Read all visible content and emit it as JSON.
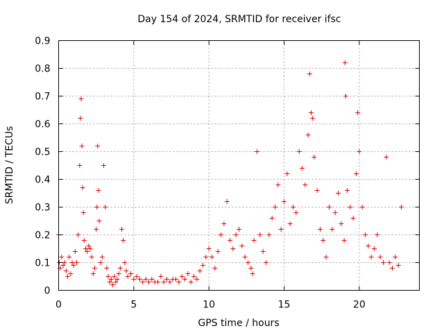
{
  "chart_data": {
    "type": "scatter",
    "title": "Day 154 of 2024, SRMTID for receiver ifsc",
    "xlabel": "GPS time / hours",
    "ylabel": "SRMTID / TECUs",
    "xlim": [
      0,
      24
    ],
    "ylim": [
      0,
      0.9
    ],
    "xticks": [
      0,
      5,
      10,
      15,
      20
    ],
    "xtick_labels": [
      "0",
      "5",
      "10",
      "15",
      "20"
    ],
    "yticks": [
      0,
      0.1,
      0.2,
      0.3,
      0.4,
      0.5,
      0.6,
      0.7,
      0.8,
      0.9
    ],
    "ytick_labels": [
      "0",
      "0.1",
      "0.2",
      "0.3",
      "0.4",
      "0.5",
      "0.6",
      "0.7",
      "0.8",
      "0.9"
    ],
    "grid": true,
    "marker": "+",
    "marker_color": "#e00000",
    "series": [
      {
        "name": "SRMTID",
        "x": [
          0.0,
          0.05,
          0.1,
          0.2,
          0.3,
          0.4,
          0.5,
          0.6,
          0.7,
          0.8,
          0.9,
          1.0,
          1.1,
          1.2,
          1.3,
          1.4,
          1.45,
          1.5,
          1.55,
          1.6,
          1.65,
          1.7,
          1.8,
          1.9,
          2.0,
          2.1,
          2.2,
          2.3,
          2.4,
          2.5,
          2.55,
          2.6,
          2.65,
          2.7,
          2.8,
          2.9,
          3.0,
          3.1,
          3.2,
          3.3,
          3.4,
          3.5,
          3.6,
          3.7,
          3.8,
          3.9,
          4.0,
          4.1,
          4.2,
          4.3,
          4.4,
          4.5,
          4.6,
          4.8,
          5.0,
          5.2,
          5.4,
          5.6,
          5.8,
          6.0,
          6.2,
          6.4,
          6.6,
          6.8,
          7.0,
          7.2,
          7.4,
          7.6,
          7.8,
          8.0,
          8.2,
          8.4,
          8.6,
          8.8,
          9.0,
          9.2,
          9.4,
          9.6,
          9.8,
          10.0,
          10.2,
          10.4,
          10.6,
          10.8,
          11.0,
          11.2,
          11.4,
          11.6,
          11.8,
          12.0,
          12.2,
          12.4,
          12.6,
          12.8,
          12.9,
          13.0,
          13.2,
          13.4,
          13.6,
          13.8,
          14.0,
          14.2,
          14.4,
          14.6,
          14.8,
          15.0,
          15.2,
          15.4,
          15.6,
          15.8,
          16.0,
          16.2,
          16.4,
          16.6,
          16.7,
          16.8,
          16.9,
          17.0,
          17.2,
          17.4,
          17.6,
          17.8,
          18.0,
          18.2,
          18.4,
          18.6,
          18.8,
          19.0,
          19.05,
          19.1,
          19.2,
          19.4,
          19.6,
          19.8,
          19.9,
          20.0,
          20.2,
          20.4,
          20.6,
          20.8,
          21.0,
          21.2,
          21.4,
          21.6,
          21.8,
          22.0,
          22.2,
          22.4,
          22.6,
          22.8
        ],
        "y": [
          0.2,
          0.1,
          0.08,
          0.12,
          0.09,
          0.1,
          0.07,
          0.05,
          0.12,
          0.06,
          0.1,
          0.09,
          0.14,
          0.1,
          0.2,
          0.45,
          0.62,
          0.69,
          0.52,
          0.37,
          0.28,
          0.18,
          0.15,
          0.14,
          0.16,
          0.15,
          0.12,
          0.06,
          0.08,
          0.22,
          0.3,
          0.52,
          0.36,
          0.25,
          0.1,
          0.12,
          0.45,
          0.3,
          0.08,
          0.05,
          0.03,
          0.04,
          0.02,
          0.05,
          0.03,
          0.04,
          0.06,
          0.08,
          0.22,
          0.18,
          0.1,
          0.07,
          0.05,
          0.06,
          0.04,
          0.05,
          0.04,
          0.03,
          0.04,
          0.03,
          0.04,
          0.03,
          0.03,
          0.05,
          0.03,
          0.04,
          0.03,
          0.04,
          0.04,
          0.03,
          0.05,
          0.04,
          0.06,
          0.03,
          0.05,
          0.04,
          0.07,
          0.09,
          0.12,
          0.15,
          0.12,
          0.08,
          0.14,
          0.2,
          0.24,
          0.32,
          0.18,
          0.15,
          0.2,
          0.22,
          0.16,
          0.12,
          0.1,
          0.08,
          0.06,
          0.18,
          0.5,
          0.2,
          0.14,
          0.1,
          0.2,
          0.26,
          0.3,
          0.38,
          0.22,
          0.32,
          0.42,
          0.24,
          0.3,
          0.28,
          0.5,
          0.44,
          0.38,
          0.56,
          0.78,
          0.64,
          0.62,
          0.48,
          0.36,
          0.22,
          0.18,
          0.12,
          0.3,
          0.22,
          0.28,
          0.35,
          0.24,
          0.18,
          0.82,
          0.7,
          0.36,
          0.3,
          0.26,
          0.42,
          0.64,
          0.5,
          0.3,
          0.2,
          0.16,
          0.12,
          0.15,
          0.2,
          0.12,
          0.1,
          0.48,
          0.1,
          0.08,
          0.12,
          0.09,
          0.3
        ]
      }
    ]
  }
}
